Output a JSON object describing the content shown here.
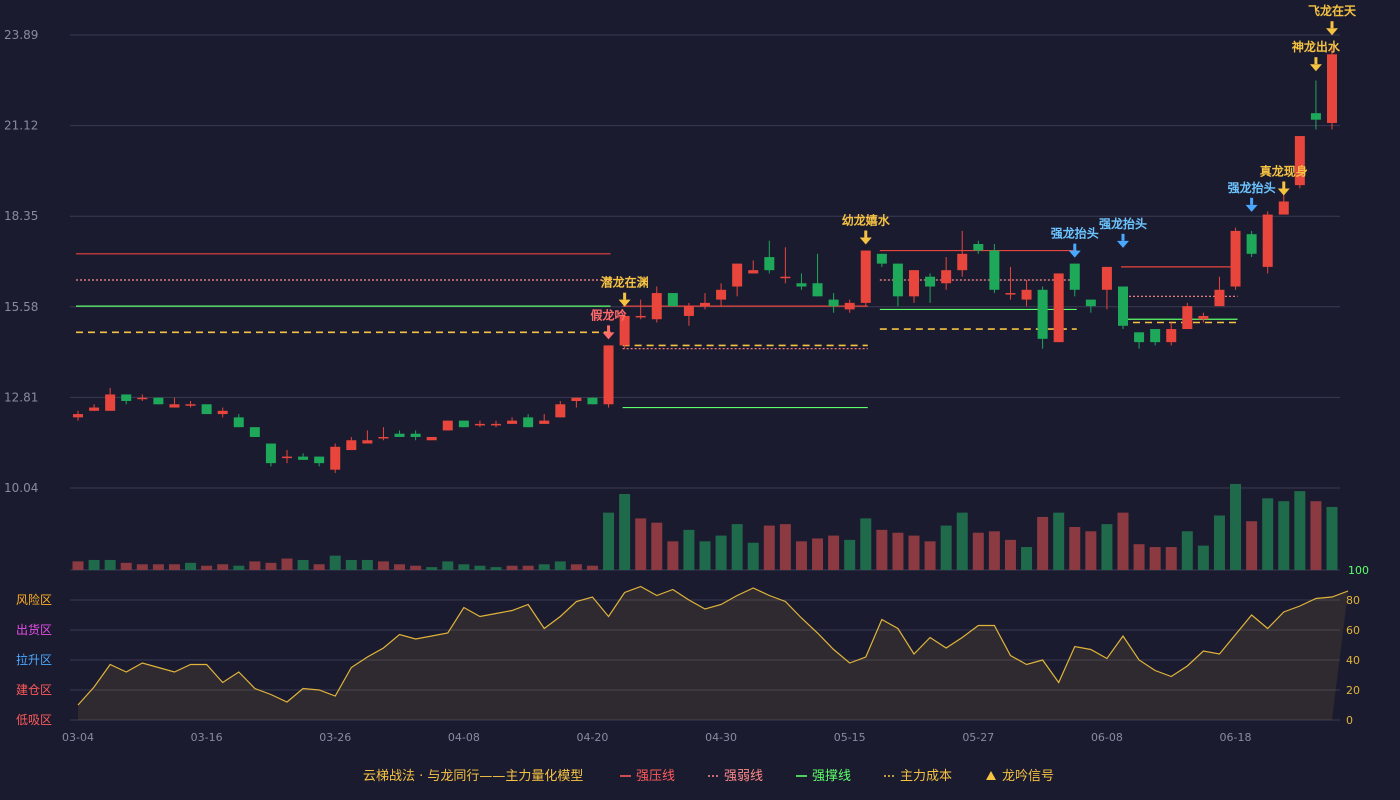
{
  "chart_data": {
    "type": "candlestick",
    "title": "",
    "price_axis": {
      "ylim": [
        10.04,
        23.89
      ],
      "ticks": [
        "23.89",
        "21.12",
        "18.35",
        "15.58",
        "12.81",
        "10.04"
      ]
    },
    "volume_axis": {
      "max_label": "100"
    },
    "x_ticks": [
      {
        "i": 0,
        "label": "03-04"
      },
      {
        "i": 8,
        "label": "03-16"
      },
      {
        "i": 16,
        "label": "03-26"
      },
      {
        "i": 24,
        "label": "04-08"
      },
      {
        "i": 32,
        "label": "04-20"
      },
      {
        "i": 40,
        "label": "04-30"
      },
      {
        "i": 48,
        "label": "05-15"
      },
      {
        "i": 56,
        "label": "05-27"
      },
      {
        "i": 64,
        "label": "06-08"
      },
      {
        "i": 72,
        "label": "06-18"
      }
    ],
    "candles": [
      [
        12.2,
        12.3,
        12.4,
        12.1
      ],
      [
        12.4,
        12.5,
        12.6,
        12.4
      ],
      [
        12.4,
        12.9,
        13.1,
        12.4
      ],
      [
        12.9,
        12.7,
        12.9,
        12.6
      ],
      [
        12.8,
        12.8,
        12.9,
        12.7
      ],
      [
        12.8,
        12.6,
        12.8,
        12.6
      ],
      [
        12.5,
        12.6,
        12.8,
        12.5
      ],
      [
        12.6,
        12.6,
        12.7,
        12.5
      ],
      [
        12.6,
        12.3,
        12.6,
        12.3
      ],
      [
        12.3,
        12.4,
        12.5,
        12.2
      ],
      [
        12.2,
        11.9,
        12.3,
        11.9
      ],
      [
        11.9,
        11.6,
        11.9,
        11.6
      ],
      [
        11.4,
        10.8,
        11.4,
        10.7
      ],
      [
        11.0,
        11.0,
        11.2,
        10.8
      ],
      [
        11.0,
        10.9,
        11.1,
        10.9
      ],
      [
        11.0,
        10.8,
        11.0,
        10.7
      ],
      [
        10.6,
        11.3,
        11.4,
        10.5
      ],
      [
        11.2,
        11.5,
        11.6,
        11.2
      ],
      [
        11.4,
        11.5,
        11.8,
        11.4
      ],
      [
        11.6,
        11.6,
        11.9,
        11.5
      ],
      [
        11.7,
        11.6,
        11.8,
        11.6
      ],
      [
        11.7,
        11.6,
        11.8,
        11.5
      ],
      [
        11.5,
        11.6,
        11.6,
        11.5
      ],
      [
        11.8,
        12.1,
        12.1,
        11.8
      ],
      [
        12.1,
        11.9,
        12.1,
        11.9
      ],
      [
        12.0,
        12.0,
        12.1,
        11.9
      ],
      [
        12.0,
        12.0,
        12.1,
        11.9
      ],
      [
        12.0,
        12.1,
        12.2,
        12.0
      ],
      [
        12.2,
        11.9,
        12.3,
        11.9
      ],
      [
        12.0,
        12.1,
        12.3,
        12.0
      ],
      [
        12.2,
        12.6,
        12.7,
        12.2
      ],
      [
        12.7,
        12.8,
        12.8,
        12.5
      ],
      [
        12.8,
        12.6,
        12.8,
        12.6
      ],
      [
        12.6,
        14.4,
        14.4,
        12.5
      ],
      [
        14.4,
        15.3,
        15.4,
        14.3
      ],
      [
        15.3,
        15.3,
        15.8,
        15.2
      ],
      [
        15.2,
        16.0,
        16.2,
        15.1
      ],
      [
        16.0,
        15.6,
        16.0,
        15.6
      ],
      [
        15.3,
        15.6,
        15.7,
        15.0
      ],
      [
        15.6,
        15.7,
        16.0,
        15.5
      ],
      [
        15.8,
        16.1,
        16.3,
        15.6
      ],
      [
        16.2,
        16.9,
        16.9,
        15.9
      ],
      [
        16.6,
        16.7,
        17.0,
        16.6
      ],
      [
        17.1,
        16.7,
        17.6,
        16.6
      ],
      [
        16.5,
        16.5,
        17.4,
        16.3
      ],
      [
        16.3,
        16.2,
        16.6,
        16.1
      ],
      [
        16.3,
        15.9,
        17.2,
        15.9
      ],
      [
        15.8,
        15.6,
        16.0,
        15.4
      ],
      [
        15.5,
        15.7,
        15.8,
        15.4
      ],
      [
        15.7,
        17.3,
        17.3,
        15.6
      ],
      [
        17.2,
        16.9,
        17.2,
        16.8
      ],
      [
        16.9,
        15.9,
        16.9,
        15.6
      ],
      [
        15.9,
        16.7,
        16.7,
        15.7
      ],
      [
        16.5,
        16.2,
        16.6,
        15.7
      ],
      [
        16.3,
        16.7,
        17.1,
        16.1
      ],
      [
        16.7,
        17.2,
        17.9,
        16.5
      ],
      [
        17.5,
        17.3,
        17.6,
        17.2
      ],
      [
        17.3,
        16.1,
        17.5,
        16.0
      ],
      [
        16.0,
        16.0,
        16.8,
        15.8
      ],
      [
        15.8,
        16.1,
        16.4,
        15.6
      ],
      [
        16.1,
        14.6,
        16.2,
        14.3
      ],
      [
        14.5,
        16.6,
        16.6,
        14.5
      ],
      [
        16.9,
        16.1,
        16.9,
        15.9
      ],
      [
        15.8,
        15.6,
        15.8,
        15.4
      ],
      [
        16.1,
        16.8,
        16.8,
        15.5
      ],
      [
        16.2,
        15.0,
        16.2,
        14.9
      ],
      [
        14.8,
        14.5,
        14.8,
        14.3
      ],
      [
        14.9,
        14.5,
        14.9,
        14.4
      ],
      [
        14.5,
        14.9,
        15.1,
        14.4
      ],
      [
        14.9,
        15.6,
        15.7,
        14.9
      ],
      [
        15.2,
        15.3,
        15.4,
        15.1
      ],
      [
        15.6,
        16.1,
        16.5,
        15.6
      ],
      [
        16.2,
        17.9,
        18.0,
        16.1
      ],
      [
        17.8,
        17.2,
        17.9,
        17.1
      ],
      [
        16.8,
        18.4,
        18.5,
        16.6
      ],
      [
        18.4,
        18.8,
        19.3,
        18.4
      ],
      [
        19.3,
        20.8,
        20.8,
        19.2
      ],
      [
        21.5,
        21.3,
        22.5,
        21.0
      ],
      [
        21.2,
        23.3,
        23.6,
        21.0
      ]
    ],
    "volumes": [
      [
        6,
        1
      ],
      [
        7,
        0
      ],
      [
        7,
        0
      ],
      [
        5,
        1
      ],
      [
        4,
        1
      ],
      [
        4,
        1
      ],
      [
        4,
        1
      ],
      [
        5,
        0
      ],
      [
        3,
        1
      ],
      [
        4,
        1
      ],
      [
        3,
        0
      ],
      [
        6,
        1
      ],
      [
        5,
        1
      ],
      [
        8,
        1
      ],
      [
        7,
        0
      ],
      [
        4,
        1
      ],
      [
        10,
        0
      ],
      [
        7,
        0
      ],
      [
        7,
        0
      ],
      [
        6,
        1
      ],
      [
        4,
        1
      ],
      [
        3,
        1
      ],
      [
        2,
        0
      ],
      [
        6,
        0
      ],
      [
        4,
        0
      ],
      [
        3,
        0
      ],
      [
        2,
        0
      ],
      [
        3,
        1
      ],
      [
        3,
        1
      ],
      [
        4,
        0
      ],
      [
        6,
        0
      ],
      [
        4,
        1
      ],
      [
        3,
        1
      ],
      [
        40,
        0
      ],
      [
        53,
        0
      ],
      [
        36,
        1
      ],
      [
        33,
        1
      ],
      [
        20,
        1
      ],
      [
        28,
        0
      ],
      [
        20,
        0
      ],
      [
        24,
        0
      ],
      [
        32,
        0
      ],
      [
        19,
        0
      ],
      [
        31,
        1
      ],
      [
        32,
        1
      ],
      [
        20,
        1
      ],
      [
        22,
        1
      ],
      [
        24,
        1
      ],
      [
        21,
        0
      ],
      [
        36,
        0
      ],
      [
        28,
        1
      ],
      [
        26,
        1
      ],
      [
        24,
        1
      ],
      [
        20,
        1
      ],
      [
        31,
        0
      ],
      [
        40,
        0
      ],
      [
        26,
        1
      ],
      [
        27,
        1
      ],
      [
        21,
        1
      ],
      [
        16,
        0
      ],
      [
        37,
        1
      ],
      [
        40,
        0
      ],
      [
        30,
        1
      ],
      [
        27,
        1
      ],
      [
        32,
        0
      ],
      [
        40,
        1
      ],
      [
        18,
        1
      ],
      [
        16,
        1
      ],
      [
        16,
        1
      ],
      [
        27,
        0
      ],
      [
        17,
        0
      ],
      [
        38,
        0
      ],
      [
        60,
        0
      ],
      [
        34,
        1
      ],
      [
        50,
        0
      ],
      [
        48,
        0
      ],
      [
        55,
        0
      ],
      [
        48,
        1
      ],
      [
        44,
        0
      ]
    ],
    "indicator": {
      "ylim": [
        0,
        100
      ],
      "right_ticks": [
        "80",
        "60",
        "40",
        "20",
        "0"
      ],
      "zones": [
        {
          "label": "风险区",
          "color": "#ffb020"
        },
        {
          "label": "出货区",
          "color": "#e64ee6"
        },
        {
          "label": "拉升区",
          "color": "#4aa8ff"
        },
        {
          "label": "建仓区",
          "color": "#ff5a5a"
        },
        {
          "label": "低吸区",
          "color": "#ff5a5a"
        }
      ],
      "values": [
        10,
        22,
        37,
        32,
        38,
        35,
        32,
        37,
        37,
        25,
        32,
        21,
        17,
        12,
        21,
        20,
        16,
        35,
        42,
        48,
        57,
        54,
        56,
        58,
        75,
        69,
        71,
        73,
        77,
        61,
        69,
        79,
        82,
        69,
        85,
        89,
        83,
        87,
        80,
        74,
        77,
        83,
        88,
        83,
        79,
        68,
        58,
        47,
        38,
        42,
        67,
        61,
        44,
        55,
        48,
        55,
        63,
        63,
        43,
        37,
        40,
        25,
        49,
        47,
        41,
        56,
        40,
        33,
        29,
        36,
        46,
        44,
        57,
        70,
        61,
        72,
        76,
        81,
        82,
        86
      ]
    },
    "support_lines": [
      {
        "kind": "resist",
        "i1": 0,
        "i2": 33,
        "y": 17.2
      },
      {
        "kind": "weak",
        "i1": 0,
        "i2": 33,
        "y": 16.4
      },
      {
        "kind": "support",
        "i1": 0,
        "i2": 33,
        "y": 15.6
      },
      {
        "kind": "cost",
        "i1": 0,
        "i2": 33,
        "y": 14.8
      },
      {
        "kind": "resist",
        "i1": 34,
        "i2": 49,
        "y": 15.6
      },
      {
        "kind": "support",
        "i1": 34,
        "i2": 49,
        "y": 12.5
      },
      {
        "kind": "cost",
        "i1": 34,
        "i2": 49,
        "y": 14.4
      },
      {
        "kind": "weak",
        "i1": 34,
        "i2": 49,
        "y": 14.3
      },
      {
        "kind": "resist",
        "i1": 50,
        "i2": 62,
        "y": 17.3
      },
      {
        "kind": "weak",
        "i1": 50,
        "i2": 62,
        "y": 16.4
      },
      {
        "kind": "support",
        "i1": 50,
        "i2": 62,
        "y": 15.5
      },
      {
        "kind": "cost",
        "i1": 50,
        "i2": 62,
        "y": 14.9
      },
      {
        "kind": "resist",
        "i1": 65,
        "i2": 72,
        "y": 16.8
      },
      {
        "kind": "weak",
        "i1": 65,
        "i2": 72,
        "y": 15.9
      },
      {
        "kind": "support",
        "i1": 65,
        "i2": 72,
        "y": 15.2
      },
      {
        "kind": "cost",
        "i1": 65,
        "i2": 72,
        "y": 15.1
      }
    ],
    "signals": [
      {
        "i": 33,
        "label": "假龙吟",
        "color": "#ff6b6b",
        "arrow": "#ff6b6b",
        "y": 14.4
      },
      {
        "i": 34,
        "label": "潜龙在渊",
        "color": "#f5c242",
        "arrow": "#f5c242",
        "y": 15.4
      },
      {
        "i": 49,
        "label": "幼龙嬉水",
        "color": "#f5c242",
        "arrow": "#f5c242",
        "y": 17.3
      },
      {
        "i": 62,
        "label": "强龙抬头",
        "color": "#6cc4ff",
        "arrow": "#4aa8ff",
        "y": 16.9
      },
      {
        "i": 65,
        "label": "强龙抬头",
        "color": "#6cc4ff",
        "arrow": "#4aa8ff",
        "y": 17.2
      },
      {
        "i": 73,
        "label": "强龙抬头",
        "color": "#6cc4ff",
        "arrow": "#4aa8ff",
        "y": 18.3
      },
      {
        "i": 75,
        "label": "真龙现身",
        "color": "#f5c242",
        "arrow": "#f5c242",
        "y": 18.8
      },
      {
        "i": 77,
        "label": "神龙出水",
        "color": "#f5c242",
        "arrow": "#f5c242",
        "y": 22.6
      },
      {
        "i": 78,
        "label": "飞龙在天",
        "color": "#f5c242",
        "arrow": "#f5c242",
        "y": 23.7
      }
    ],
    "legend": {
      "model": "云梯战法 · 与龙同行——主力量化模型",
      "items": [
        {
          "label": "强压线",
          "color": "#ff5a5a",
          "style": "solid"
        },
        {
          "label": "强弱线",
          "color": "#ff8a8a",
          "style": "dashed"
        },
        {
          "label": "强撑线",
          "color": "#5cff6a",
          "style": "solid"
        },
        {
          "label": "主力成本",
          "color": "#f5c242",
          "style": "dashed"
        },
        {
          "label": "龙吟信号",
          "color": "#f5c242",
          "style": "triangle"
        }
      ]
    },
    "colors": {
      "up": "#e8453c",
      "down": "#1ea85a",
      "grid": "#3a3a52",
      "axis_text": "#8a8aa0",
      "bg": "#1b1b2f",
      "indicator_line": "#e0b43a"
    }
  }
}
